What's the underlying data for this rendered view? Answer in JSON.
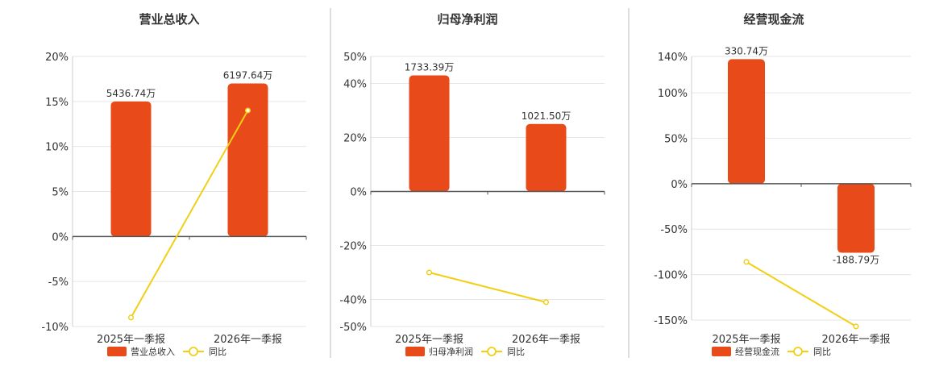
{
  "colors": {
    "bar": "#e84a1a",
    "line": "#f2cf14",
    "grid": "#e6e6e6",
    "axis": "#555555",
    "divider": "#bbbbbb",
    "text": "#333333"
  },
  "chart_data": [
    {
      "type": "bar",
      "title": "营业总收入",
      "categories": [
        "2025年一季报",
        "2026年一季报"
      ],
      "yticks": [
        "20%",
        "15%",
        "10%",
        "5%",
        "0%",
        "-5%",
        "-10%"
      ],
      "ylim": [
        -10,
        20
      ],
      "series": [
        {
          "name": "营业总收入",
          "type": "bar",
          "values": [
            15,
            17
          ],
          "labels": [
            "5436.74万",
            "6197.64万"
          ]
        },
        {
          "name": "同比",
          "type": "line",
          "values": [
            -9,
            14
          ]
        }
      ],
      "legend": [
        "营业总收入",
        "同比"
      ]
    },
    {
      "type": "bar",
      "title": "归母净利润",
      "categories": [
        "2025年一季报",
        "2026年一季报"
      ],
      "yticks": [
        "50%",
        "40%",
        "20%",
        "0%",
        "-20%",
        "-40%",
        "-50%"
      ],
      "ylim": [
        -50,
        50
      ],
      "series": [
        {
          "name": "归母净利润",
          "type": "bar",
          "values": [
            43,
            25
          ],
          "labels": [
            "1733.39万",
            "1021.50万"
          ]
        },
        {
          "name": "同比",
          "type": "line",
          "values": [
            -30,
            -41
          ]
        }
      ],
      "legend": [
        "归母净利润",
        "同比"
      ]
    },
    {
      "type": "bar",
      "title": "经营现金流",
      "categories": [
        "2025年一季报",
        "2026年一季报"
      ],
      "yticks": [
        "140%",
        "100%",
        "50%",
        "0%",
        "-50%",
        "-100%",
        "-150%"
      ],
      "ylim": [
        -150,
        140
      ],
      "series": [
        {
          "name": "经营现金流",
          "type": "bar",
          "values": [
            137,
            -76
          ],
          "labels": [
            "330.74万",
            "-188.79万"
          ]
        },
        {
          "name": "同比",
          "type": "line",
          "values": [
            -86,
            -157
          ]
        }
      ],
      "legend": [
        "经营现金流",
        "同比"
      ]
    }
  ]
}
